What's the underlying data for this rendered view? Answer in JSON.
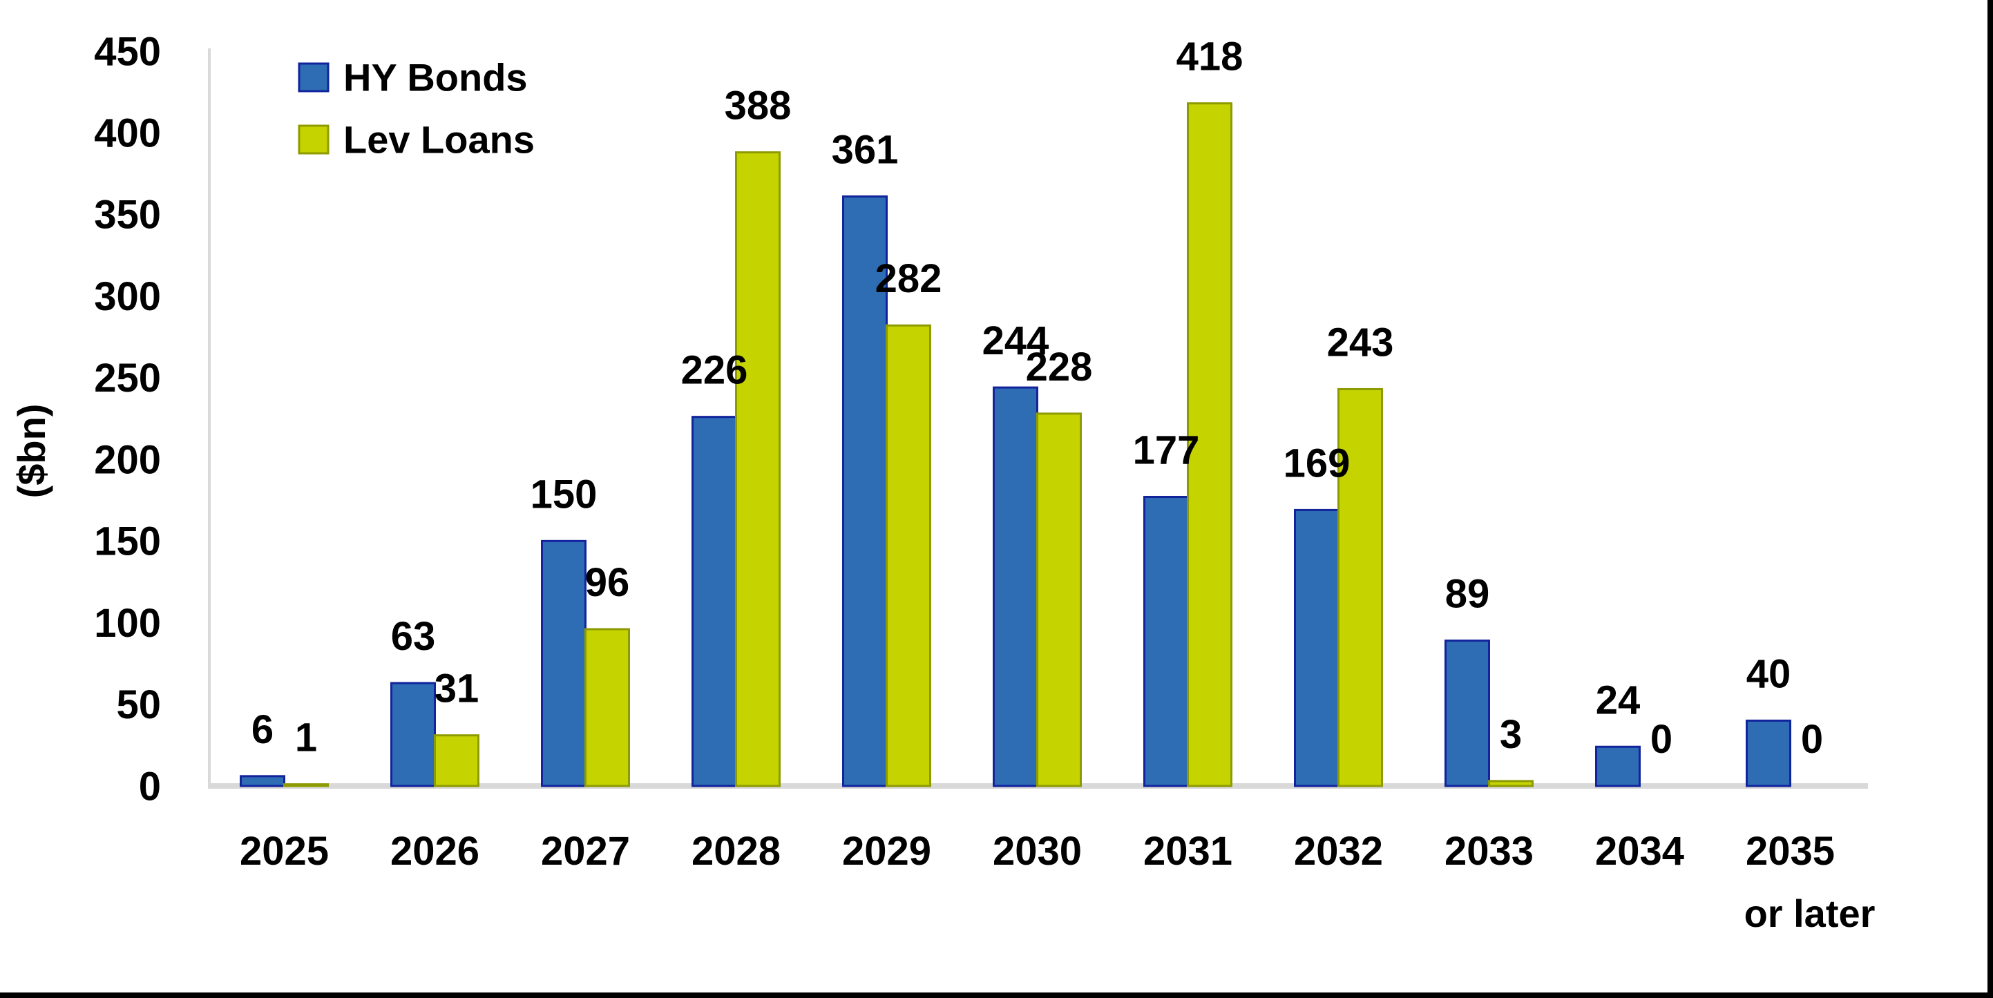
{
  "chart_data": {
    "type": "bar",
    "title": "",
    "ylabel": "($bn)",
    "ylim": [
      0,
      450
    ],
    "ytick_interval": 50,
    "yticks": [
      0,
      50,
      100,
      150,
      200,
      250,
      300,
      350,
      400,
      450
    ],
    "grid": false,
    "legend_position": "top-left-inside",
    "value_labels_shown": true,
    "categories": [
      "2025",
      "2026",
      "2027",
      "2028",
      "2029",
      "2030",
      "2031",
      "2032",
      "2033",
      "2034",
      "2035"
    ],
    "last_category_second_line": "or later",
    "series": [
      {
        "name": "HY Bonds",
        "values": [
          6,
          63,
          150,
          226,
          361,
          244,
          177,
          169,
          89,
          24,
          40
        ],
        "fill": "#2E6CB4",
        "stroke": "#12249C"
      },
      {
        "name": "Lev Loans",
        "values": [
          1,
          31,
          96,
          388,
          282,
          228,
          418,
          243,
          3,
          0,
          0
        ],
        "fill": "#C5D300",
        "stroke": "#8E9B00"
      }
    ],
    "axis_line_color": "#D9D9D9",
    "text_color": "#000000",
    "frame_border_color": "#000000"
  }
}
